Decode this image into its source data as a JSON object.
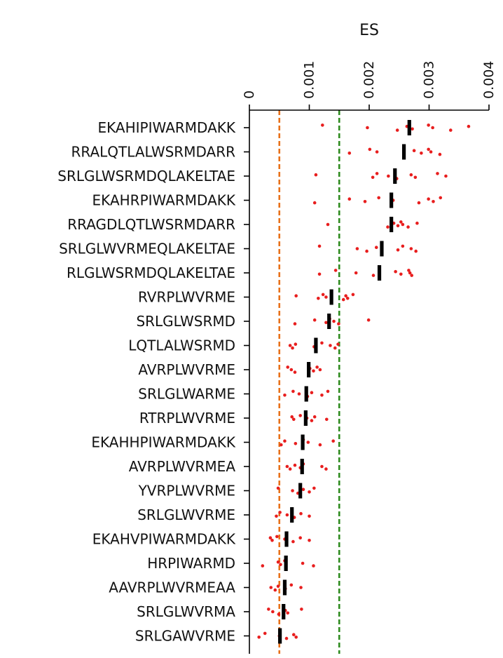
{
  "chart_data": {
    "type": "scatter",
    "xlabel": "ES",
    "ylabel": "",
    "xlim": [
      0,
      0.004
    ],
    "xticks": [
      0,
      0.001,
      0.002,
      0.003,
      0.004
    ],
    "xtick_labels": [
      "0",
      "0.001",
      "0.002",
      "0.003",
      "0.004"
    ],
    "x_axis_position": "top",
    "x_tick_label_rotation": "vertical",
    "grid": false,
    "legend": "none",
    "categories": [
      "EKAHIPIWARMDAKK",
      "RRALQTLALWSRMDARR",
      "SRLGLWSRMDQLAKELTAE",
      "EKAHRPIWARMDAKK",
      "RRAGDLQTLWSRMDARR",
      "SRLGLWVRMEQLAKELTAE",
      "RLGLWSRMDQLAKELTAE",
      "RVRPLWVRME",
      "SRLGLWSRMD",
      "LQTLALWSRMD",
      "AVRPLWVRME",
      "SRLGLWARME",
      "RTRPLWVRME",
      "EKAHHPIWARMDAKK",
      "AVRPLWVRMEA",
      "YVRPLWVRME",
      "SRLGLWVRME",
      "EKAHVPIWARMDAKK",
      "HRPIWARMD",
      "AAVRPLWVRMEAA",
      "SRLGLWVRMA",
      "SRLGAWVRME"
    ],
    "series": [
      {
        "marker": "black bar",
        "values": [
          0.00267,
          0.00258,
          0.00243,
          0.00237,
          0.00237,
          0.00221,
          0.00217,
          0.00137,
          0.00133,
          0.00111,
          0.00099,
          0.00095,
          0.00094,
          0.00089,
          0.00088,
          0.00085,
          0.00071,
          0.00062,
          0.00061,
          0.00059,
          0.00057,
          0.00051
        ]
      },
      {
        "marker": "red dot",
        "points": [
          [
            0.00122,
            0.00197,
            0.00247,
            0.00263,
            0.00272,
            0.00299,
            0.00306,
            0.00336,
            0.00366
          ],
          [
            0.00167,
            0.00201,
            0.00213,
            0.00258,
            0.00275,
            0.00287,
            0.00299,
            0.00303,
            0.00318
          ],
          [
            0.00111,
            0.00206,
            0.00213,
            0.00232,
            0.00246,
            0.0027,
            0.00277,
            0.00314,
            0.00328
          ],
          [
            0.00109,
            0.00167,
            0.00193,
            0.00216,
            0.0024,
            0.00283,
            0.00299,
            0.00307,
            0.00319
          ],
          [
            0.00131,
            0.00231,
            0.00241,
            0.00248,
            0.00253,
            0.00256,
            0.00265,
            0.0028
          ],
          [
            0.00117,
            0.0018,
            0.00196,
            0.00212,
            0.00248,
            0.00256,
            0.0027,
            0.00278
          ],
          [
            0.00117,
            0.00144,
            0.00178,
            0.00207,
            0.00244,
            0.00253,
            0.00266,
            0.00268,
            0.00271
          ],
          [
            0.00078,
            0.00115,
            0.00123,
            0.00128,
            0.00157,
            0.00161,
            0.00164,
            0.00173
          ],
          [
            0.00076,
            0.00109,
            0.00128,
            0.00134,
            0.00141,
            0.00149,
            0.00199
          ],
          [
            0.00068,
            0.00072,
            0.00077,
            0.00108,
            0.00121,
            0.00135,
            0.00143,
            0.00148
          ],
          [
            0.00064,
            0.0007,
            0.00076,
            0.00101,
            0.00107,
            0.00113,
            0.00118
          ],
          [
            0.00059,
            0.00073,
            0.00083,
            0.00097,
            0.00104,
            0.00121,
            0.00131
          ],
          [
            0.00071,
            0.00074,
            0.00085,
            0.00096,
            0.00104,
            0.00109,
            0.00129
          ],
          [
            0.00053,
            0.00059,
            0.00077,
            0.0009,
            0.00098,
            0.00118,
            0.0014
          ],
          [
            0.00063,
            0.00068,
            0.00076,
            0.00085,
            0.0009,
            0.00121,
            0.00128
          ],
          [
            0.00048,
            0.00072,
            0.00081,
            0.0009,
            0.001,
            0.00108
          ],
          [
            0.00045,
            0.00051,
            0.00063,
            0.00075,
            0.00086,
            0.001
          ],
          [
            0.00035,
            0.00038,
            0.00046,
            0.00059,
            0.00073,
            0.00085,
            0.001
          ],
          [
            0.00022,
            0.00048,
            0.00052,
            0.00059,
            0.00089,
            0.00107
          ],
          [
            0.00036,
            0.00043,
            0.00048,
            0.0006,
            0.0007,
            0.00086
          ],
          [
            0.00032,
            0.00039,
            0.00049,
            0.0006,
            0.00064,
            0.00087
          ],
          [
            0.00016,
            0.00026,
            0.0005,
            0.00062,
            0.00074,
            0.00078
          ]
        ]
      }
    ],
    "reference_lines": [
      {
        "x": 0.0005,
        "color": "#e8711a",
        "style": "dashed"
      },
      {
        "x": 0.0015,
        "color": "#2e8b1f",
        "style": "dashed"
      }
    ],
    "colors": {
      "dot": "#e81e1e",
      "median_bar": "#000000",
      "axis": "#000000"
    }
  }
}
